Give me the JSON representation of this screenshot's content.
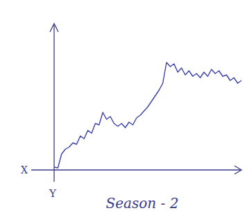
{
  "chart_data": {
    "type": "line",
    "title": "Season - 2",
    "x_label": "X",
    "y_label": "Y",
    "x": [
      0,
      2,
      4,
      6,
      8,
      10,
      12,
      14,
      16,
      18,
      20,
      22,
      24,
      26,
      28,
      30,
      32,
      34,
      36,
      38,
      40,
      42,
      44,
      46,
      48,
      50,
      52,
      54,
      56,
      58,
      60,
      62,
      64,
      66,
      68,
      70,
      72,
      74,
      76,
      78,
      80,
      82,
      84,
      86,
      88,
      90,
      92,
      94,
      96,
      98,
      100
    ],
    "values": [
      2,
      1.5,
      11.5,
      15,
      16.5,
      19.5,
      18.5,
      24.5,
      22.5,
      28.5,
      26.5,
      33.5,
      32.5,
      41.5,
      36.5,
      38.5,
      33.5,
      31.5,
      33.5,
      30.5,
      34.5,
      32.5,
      37.5,
      39.5,
      42.5,
      45.5,
      49.5,
      53.5,
      57.5,
      62.5,
      77.5,
      74.5,
      76.5,
      70.5,
      73.5,
      68.5,
      71.5,
      67.5,
      69.5,
      66.5,
      70.5,
      67.5,
      72.5,
      69.5,
      71.5,
      67.5,
      68.5,
      64.5,
      66.5,
      62.5,
      64.5
    ],
    "color": "#3b3fa8",
    "xlim": [
      0,
      100
    ],
    "ylim": [
      0,
      100
    ],
    "xticks": [],
    "yticks": [],
    "tick_labels": false,
    "grid": false
  }
}
